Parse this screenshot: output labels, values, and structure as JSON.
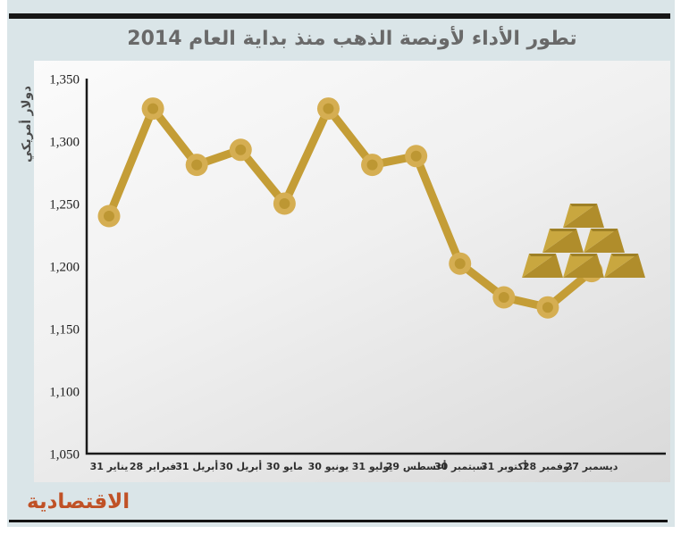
{
  "header": {
    "title": "تطور الأداء لأونصة الذهب منذ بداية العام 2014"
  },
  "axis": {
    "y_title": "دولار أمريكي"
  },
  "logo": {
    "text": "الاقتصادية"
  },
  "icons": {
    "gold_bars": "gold-bars-icon"
  },
  "colors": {
    "line": "#C49D36",
    "marker_outer": "#D5AE52",
    "marker_inner": "#BD9733",
    "ingot_light": "#C9A73F",
    "ingot_dark": "#B08D2B",
    "ingot_lip": "#9E8026",
    "axis": "#1A1A1A",
    "band_background": "#DAE5E8",
    "logo_red": "#C05126",
    "title_gray": "#696969"
  },
  "chart_data": {
    "type": "line",
    "title": "تطور الأداء لأونصة الذهب منذ بداية العام 2014",
    "ylabel": "دولار أمريكي",
    "xlabel": "",
    "categories": [
      "31 يناير",
      "28 فبراير",
      "31 أبريل",
      "30 أبريل",
      "30 مايو",
      "30 يونيو",
      "31 يوليو",
      "29 أغسطس",
      "30 سبتمبر",
      "31 أكتوبر",
      "28 نوفمبر",
      "27 ديسمبر"
    ],
    "values": [
      1240,
      1326,
      1281,
      1293,
      1250,
      1326,
      1281,
      1288,
      1202,
      1175,
      1167,
      1196
    ],
    "ylim": [
      1050,
      1350
    ],
    "ytick_step": 50,
    "yticks": [
      "1,050",
      "1,100",
      "1,150",
      "1,200",
      "1,250",
      "1,300",
      "1,350"
    ],
    "grid": false,
    "legend": "none",
    "marker": "ring-dot"
  }
}
